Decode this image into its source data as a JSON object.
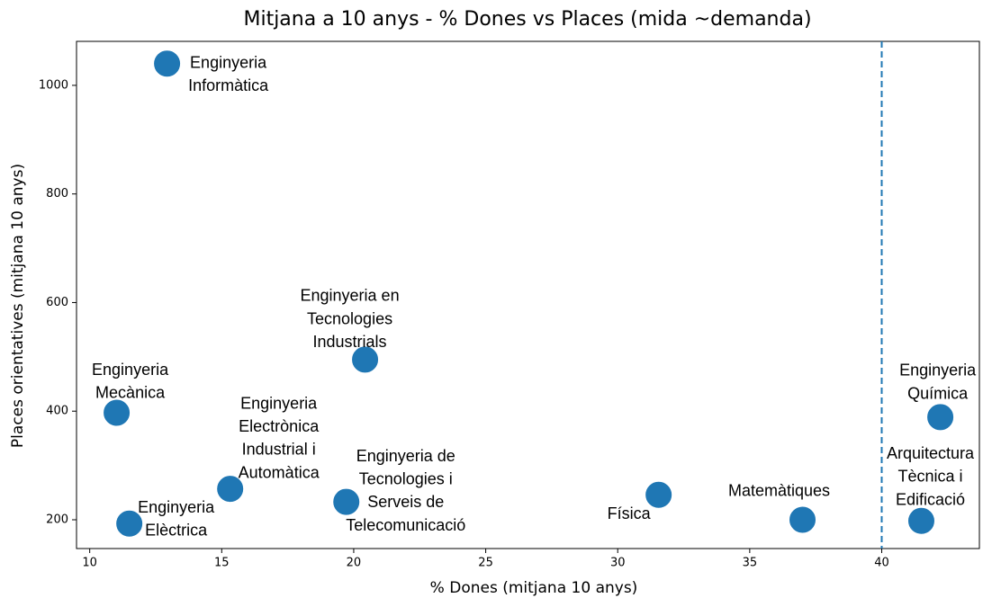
{
  "chart_data": {
    "type": "scatter",
    "title": "Mitjana a 10 anys - % Dones vs Places (mida ~demanda)",
    "xlabel": "% Dones  (mitjana 10 anys)",
    "ylabel": "Places orientatives (mitjana 10 anys)",
    "color": "#1f77b4",
    "xlim": [
      9.5,
      43.7
    ],
    "ylim": [
      147,
      1081
    ],
    "xticks": [
      10,
      15,
      20,
      25,
      30,
      35,
      40
    ],
    "yticks": [
      200,
      400,
      600,
      800,
      1000
    ],
    "reference_x": 40,
    "labels": [
      [
        "Enginyeria",
        "Informàtica"
      ],
      [
        "Enginyeria en",
        "Tecnologies",
        "Industrials"
      ],
      [
        "Enginyeria",
        "Mecànica"
      ],
      [
        "Enginyeria",
        "Electrònica",
        "Industrial i",
        "Automàtica"
      ],
      [
        "Enginyeria",
        "Elèctrica"
      ],
      [
        "Enginyeria de",
        "Tecnologies i",
        "Serveis de",
        "Telecomunicació"
      ],
      [
        "Física"
      ],
      [
        "Matemàtiques"
      ],
      [
        "Enginyeria",
        "Química"
      ],
      [
        "Arquitectura",
        "Tècnica i",
        "Edificació"
      ]
    ],
    "x": [
      12.93,
      20.43,
      11.02,
      15.32,
      11.5,
      19.72,
      31.55,
      37.0,
      42.22,
      41.5
    ],
    "values": [
      1040,
      495,
      397,
      257,
      193,
      233,
      246,
      200,
      389,
      198
    ]
  }
}
